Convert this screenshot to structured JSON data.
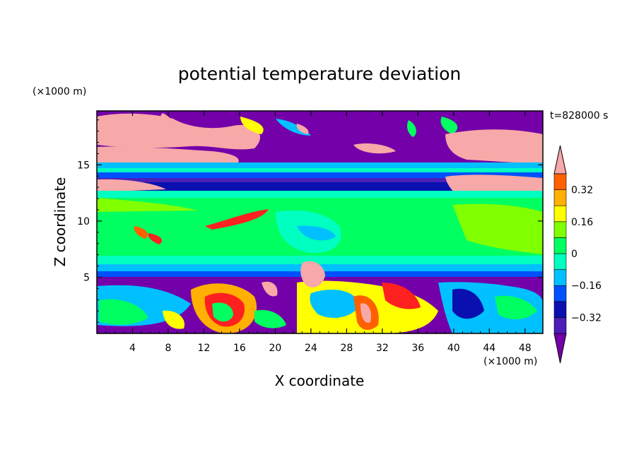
{
  "chart_data": {
    "type": "heatmap",
    "title": "potential temperature deviation",
    "xlabel": "X coordinate",
    "ylabel": "Z coordinate",
    "x_unit": "(×1000 m)",
    "y_unit": "(×1000 m)",
    "time_label": "t=828000 s",
    "xlim": [
      0,
      50
    ],
    "ylim": [
      0,
      19.8
    ],
    "x_ticks": [
      "4",
      "8",
      "12",
      "16",
      "20",
      "24",
      "28",
      "32",
      "36",
      "40",
      "44",
      "48"
    ],
    "y_ticks": [
      "5",
      "10",
      "15"
    ],
    "colorbar": {
      "levels": [
        -0.4,
        -0.32,
        -0.24,
        -0.16,
        -0.08,
        0,
        0.08,
        0.16,
        0.24,
        0.32,
        0.4
      ],
      "tick_labels": [
        "0.32",
        "0.16",
        "0",
        "−0.16",
        "−0.32"
      ],
      "colors": [
        "#7300a8",
        "#4b1fb8",
        "#0a10b0",
        "#0050ff",
        "#00c0ff",
        "#00ffc0",
        "#00ff60",
        "#80ff00",
        "#ffff00",
        "#ffb000",
        "#ff6000",
        "#ff2020",
        "#f7a8a8"
      ]
    }
  }
}
